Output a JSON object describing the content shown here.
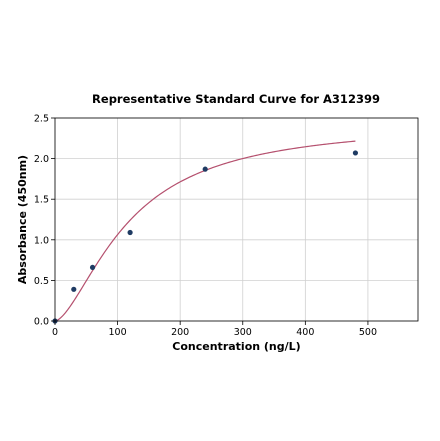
{
  "chart_data": {
    "type": "scatter",
    "title": "Representative Standard Curve for A312399",
    "xlabel": "Concentration (ng/L)",
    "ylabel": "Absorbance (450nm)",
    "xlim": [
      0,
      580
    ],
    "ylim": [
      0,
      2.5
    ],
    "xticks": [
      0,
      100,
      200,
      300,
      400,
      500
    ],
    "yticks": [
      0.0,
      0.5,
      1.0,
      1.5,
      2.0,
      2.5
    ],
    "xtick_labels": [
      "0",
      "100",
      "200",
      "300",
      "400",
      "500"
    ],
    "ytick_labels": [
      "0.0",
      "0.5",
      "1.0",
      "1.5",
      "2.0",
      "2.5"
    ],
    "grid": true,
    "series": [
      {
        "kind": "points",
        "x": [
          0,
          30,
          60,
          120,
          240,
          480
        ],
        "y": [
          0.0,
          0.39,
          0.66,
          1.09,
          1.87,
          2.07
        ]
      },
      {
        "kind": "fit-curve",
        "model": "4PL",
        "x_range": [
          0,
          480
        ],
        "params": {
          "A": 0.0,
          "B": 1.6,
          "C": 118,
          "D": 2.45
        }
      }
    ],
    "colors": {
      "points": "#1f3b63",
      "curve": "#b5506e",
      "grid": "#d0d0d0"
    }
  }
}
